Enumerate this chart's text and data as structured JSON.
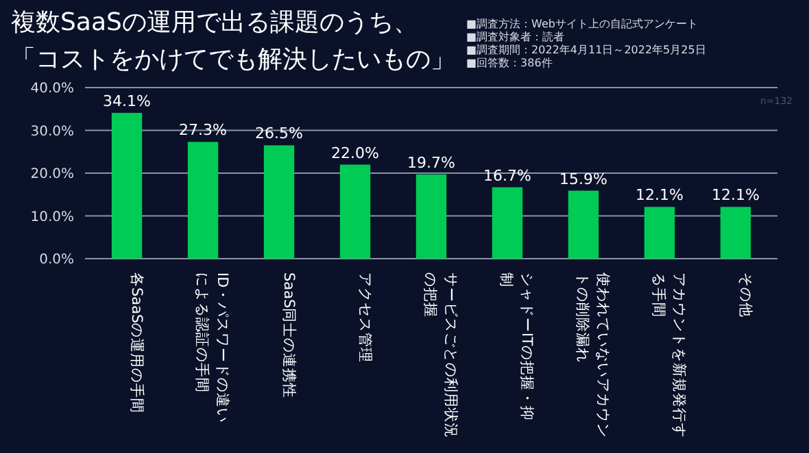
{
  "chart_data": {
    "type": "bar",
    "title": "複数SaaSの運用で出る課題のうち、「コストをかけてでも解決したいもの」",
    "categories": [
      "各SaaSの運用の手間",
      "ID・パスワードの違いによる認証の手間",
      "SaaS同士の連携性",
      "アクセス管理",
      "サービスごとの利用状況の把握",
      "シャドーITの把握・抑制",
      "使われていないアカウントの削除漏れ",
      "アカウントを新規発行する手間",
      "その他"
    ],
    "values": [
      34.1,
      27.3,
      26.5,
      22.0,
      19.7,
      16.7,
      15.9,
      12.1,
      12.1
    ],
    "value_labels": [
      "34.1%",
      "27.3%",
      "26.5%",
      "22.0%",
      "19.7%",
      "16.7%",
      "15.9%",
      "12.1%",
      "12.1%"
    ],
    "color": "#00cc55",
    "ylim": [
      0,
      40
    ],
    "yticks": [
      {
        "value": 0,
        "label": "0.0%"
      },
      {
        "value": 10,
        "label": "10.0%"
      },
      {
        "value": 20,
        "label": "20.0%"
      },
      {
        "value": 30,
        "label": "30.0%"
      },
      {
        "value": 40,
        "label": "40.0%"
      }
    ],
    "grid": "y",
    "annotations": [
      "■調査方法：Webサイト上の自記式アンケート",
      "■調査対象者：読者",
      "■調査期間：2022年4月11日～2022年5月25日",
      "■回答数：386件",
      "n=132"
    ]
  }
}
